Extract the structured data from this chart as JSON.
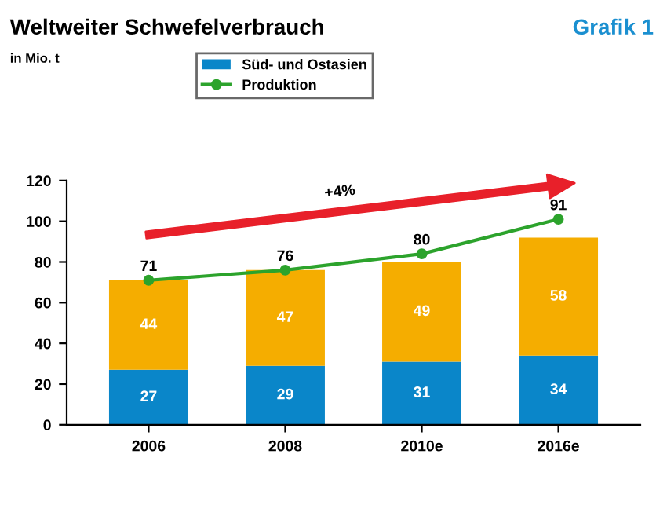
{
  "chart_data": {
    "type": "bar",
    "title": "Weltweiter Schwefelverbrauch",
    "subtitle": "in Mio. t",
    "categories": [
      "2006",
      "2008",
      "2010e",
      "2016e"
    ],
    "stacked": true,
    "series": [
      {
        "name": "Süd- und Ostasien",
        "color": "#0a86c9",
        "values": [
          27,
          29,
          31,
          34
        ],
        "value_labels": [
          "27",
          "29",
          "31",
          "34"
        ]
      },
      {
        "color": "#f5ad00",
        "values": [
          44,
          47,
          49,
          58
        ],
        "value_labels": [
          "44",
          "47",
          "49",
          "58"
        ]
      },
      {
        "name": "Produktion",
        "type": "line",
        "color": "#2ca32c",
        "marker": "circle",
        "values": [
          71,
          76,
          84,
          101
        ]
      }
    ],
    "totals": [
      "71",
      "76",
      "80",
      "91"
    ],
    "annotations": [
      "+4%",
      "Grafik 1"
    ],
    "ylim": [
      0,
      120
    ],
    "yticks": [
      0,
      20,
      40,
      60,
      80,
      100,
      120
    ],
    "grid": false,
    "legend": "top"
  }
}
